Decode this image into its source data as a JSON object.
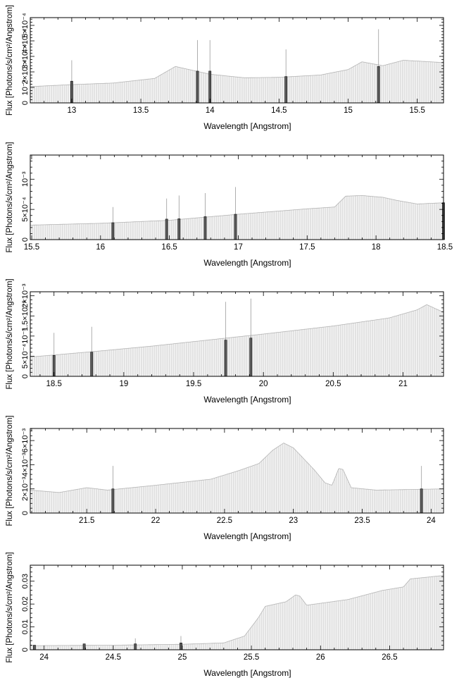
{
  "chart_data": [
    {
      "type": "bar",
      "xlabel": "Wavelength [Angstrom]",
      "ylabel": "Flux [Photons/s/cm²/Angstrom]",
      "xlim": [
        12.7,
        15.69
      ],
      "ylim": [
        0,
        0.00055
      ],
      "x_ticks": [
        13,
        13.5,
        14,
        14.5,
        15,
        15.5
      ],
      "y_ticks": [
        0,
        0.0001,
        0.0002,
        0.0003,
        0.0004,
        0.0005
      ],
      "y_tick_labels": [
        "0",
        "10⁻⁴",
        "2×10⁻⁴",
        "3×10⁻⁴",
        "4×10⁻⁴",
        "5×10⁻⁴"
      ],
      "continuum": [
        [
          12.7,
          0.000105
        ],
        [
          13.0,
          0.000118
        ],
        [
          13.3,
          0.000128
        ],
        [
          13.6,
          0.000158
        ],
        [
          13.75,
          0.000235
        ],
        [
          13.85,
          0.000215
        ],
        [
          14.0,
          0.000185
        ],
        [
          14.25,
          0.000162
        ],
        [
          14.5,
          0.000165
        ],
        [
          14.8,
          0.00018
        ],
        [
          15.0,
          0.000215
        ],
        [
          15.1,
          0.000265
        ],
        [
          15.25,
          0.00024
        ],
        [
          15.4,
          0.000275
        ],
        [
          15.69,
          0.00026
        ]
      ],
      "lines": [
        {
          "x": 13.0,
          "y": 0.00014,
          "err": 0.000275
        },
        {
          "x": 13.91,
          "y": 0.000205,
          "err": 0.000405
        },
        {
          "x": 14.0,
          "y": 0.000205,
          "err": 0.000405
        },
        {
          "x": 14.55,
          "y": 0.00017,
          "err": 0.000345
        },
        {
          "x": 15.22,
          "y": 0.000235,
          "err": 0.000475
        }
      ]
    },
    {
      "type": "bar",
      "xlabel": "Wavelength [Angstrom]",
      "ylabel": "Flux [Photons/s/cm²/Angstrom]",
      "xlim": [
        15.49,
        18.49
      ],
      "ylim": [
        0,
        0.0014
      ],
      "x_ticks": [
        15.5,
        16,
        16.5,
        17,
        17.5,
        18,
        18.5
      ],
      "y_ticks": [
        0,
        0.0005,
        0.001
      ],
      "y_tick_labels": [
        "0",
        "5×10⁻⁴",
        "10⁻³"
      ],
      "continuum": [
        [
          15.49,
          0.00024
        ],
        [
          16.0,
          0.00027
        ],
        [
          16.5,
          0.00032
        ],
        [
          17.0,
          0.00042
        ],
        [
          17.5,
          0.00051
        ],
        [
          17.7,
          0.00054
        ],
        [
          17.78,
          0.00072
        ],
        [
          17.9,
          0.00073
        ],
        [
          18.05,
          0.0007
        ],
        [
          18.15,
          0.00065
        ],
        [
          18.3,
          0.00059
        ],
        [
          18.49,
          0.00061
        ]
      ],
      "lines": [
        {
          "x": 16.09,
          "y": 0.00028,
          "err": 0.00054
        },
        {
          "x": 16.48,
          "y": 0.00034,
          "err": 0.00068
        },
        {
          "x": 16.57,
          "y": 0.000345,
          "err": 0.00073
        },
        {
          "x": 16.76,
          "y": 0.00038,
          "err": 0.00077
        },
        {
          "x": 16.98,
          "y": 0.00042,
          "err": 0.00087
        },
        {
          "x": 18.49,
          "y": 0.00061,
          "err": 0.00061
        }
      ]
    },
    {
      "type": "bar",
      "xlabel": "Wavelength [Angstrom]",
      "ylabel": "Flux [Photons/s/cm²/Angstrom]",
      "xlim": [
        18.33,
        21.29
      ],
      "ylim": [
        0,
        0.0021
      ],
      "x_ticks": [
        18.5,
        19,
        19.5,
        20,
        20.5,
        21
      ],
      "y_ticks": [
        0,
        0.0005,
        0.001,
        0.0015,
        0.002
      ],
      "y_tick_labels": [
        "0",
        "5×10⁻⁴",
        "10⁻³",
        "1.5×10⁻³",
        "2×10⁻³"
      ],
      "continuum": [
        [
          18.33,
          0.00048
        ],
        [
          18.8,
          0.00062
        ],
        [
          19.2,
          0.00075
        ],
        [
          19.6,
          0.0009
        ],
        [
          20.0,
          0.00105
        ],
        [
          20.5,
          0.00125
        ],
        [
          20.9,
          0.00145
        ],
        [
          21.1,
          0.00165
        ],
        [
          21.17,
          0.00178
        ],
        [
          21.29,
          0.00159
        ]
      ],
      "lines": [
        {
          "x": 18.5,
          "y": 0.00052,
          "err": 0.00108
        },
        {
          "x": 18.77,
          "y": 0.0006,
          "err": 0.00123
        },
        {
          "x": 19.73,
          "y": 0.0009,
          "err": 0.00185
        },
        {
          "x": 19.91,
          "y": 0.00095,
          "err": 0.00193
        }
      ]
    },
    {
      "type": "bar",
      "xlabel": "Wavelength [Angstrom]",
      "ylabel": "Flux [Photons/s/cm²/Angstrom]",
      "xlim": [
        21.09,
        24.09
      ],
      "ylim": [
        0,
        0.007
      ],
      "x_ticks": [
        21.5,
        22,
        22.5,
        23,
        23.5,
        24
      ],
      "y_ticks": [
        0,
        0.002,
        0.004,
        0.006
      ],
      "y_tick_labels": [
        "0",
        "2×10⁻³",
        "4×10⁻³",
        "6×10⁻³"
      ],
      "continuum": [
        [
          21.09,
          0.0019
        ],
        [
          21.3,
          0.0017
        ],
        [
          21.5,
          0.0021
        ],
        [
          21.65,
          0.0019
        ],
        [
          22.0,
          0.0023
        ],
        [
          22.4,
          0.0028
        ],
        [
          22.6,
          0.0035
        ],
        [
          22.75,
          0.0041
        ],
        [
          22.85,
          0.0052
        ],
        [
          22.93,
          0.0058
        ],
        [
          23.0,
          0.0054
        ],
        [
          23.15,
          0.0036
        ],
        [
          23.23,
          0.0025
        ],
        [
          23.28,
          0.0023
        ],
        [
          23.33,
          0.0037
        ],
        [
          23.36,
          0.0036
        ],
        [
          23.42,
          0.0021
        ],
        [
          23.6,
          0.0019
        ],
        [
          24.09,
          0.002
        ]
      ],
      "lines": [
        {
          "x": 21.69,
          "y": 0.002,
          "err": 0.0039
        },
        {
          "x": 23.93,
          "y": 0.002,
          "err": 0.0039
        }
      ]
    },
    {
      "type": "bar",
      "xlabel": "Wavelength [Angstrom]",
      "ylabel": "Flux [Photons/s/cm²/Angstrom]",
      "xlim": [
        23.9,
        26.89
      ],
      "ylim": [
        0,
        0.037
      ],
      "x_ticks": [
        24,
        24.5,
        25,
        25.5,
        26,
        26.5
      ],
      "y_ticks": [
        0,
        0.01,
        0.02,
        0.03
      ],
      "y_tick_labels": [
        "0",
        "0.01",
        "0.02",
        "0.03"
      ],
      "continuum": [
        [
          23.9,
          0.0018
        ],
        [
          24.5,
          0.002
        ],
        [
          25.0,
          0.0024
        ],
        [
          25.3,
          0.003
        ],
        [
          25.45,
          0.006
        ],
        [
          25.55,
          0.014
        ],
        [
          25.6,
          0.019
        ],
        [
          25.75,
          0.021
        ],
        [
          25.82,
          0.024
        ],
        [
          25.85,
          0.0235
        ],
        [
          25.9,
          0.0195
        ],
        [
          26.2,
          0.022
        ],
        [
          26.45,
          0.026
        ],
        [
          26.6,
          0.0275
        ],
        [
          26.65,
          0.031
        ],
        [
          26.89,
          0.0325
        ]
      ],
      "lines": [
        {
          "x": 23.93,
          "y": 0.002,
          "err": 0.002
        },
        {
          "x": 24.29,
          "y": 0.0026,
          "err": 0.0026
        },
        {
          "x": 24.66,
          "y": 0.0026,
          "err": 0.005
        },
        {
          "x": 24.99,
          "y": 0.003,
          "err": 0.006
        }
      ]
    }
  ]
}
